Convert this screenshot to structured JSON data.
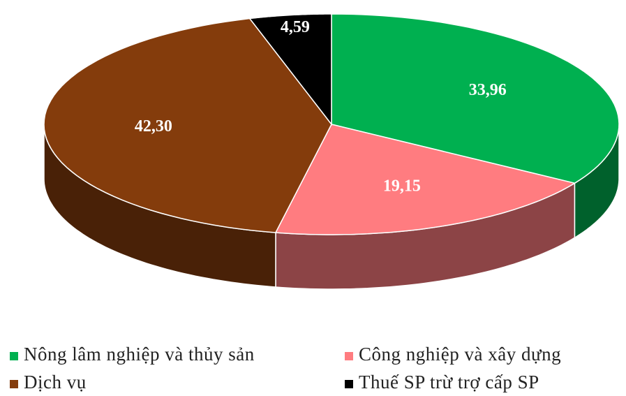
{
  "chart_data": {
    "type": "pie",
    "categories": [
      "Nông lâm nghiệp và thủy sản",
      "Công nghiệp và xây dựng",
      "Dịch vụ",
      "Thuế SP trừ trợ cấp SP"
    ],
    "values": [
      33.96,
      19.15,
      42.3,
      4.59
    ],
    "value_labels": [
      "33,96",
      "19,15",
      "42,30",
      "4,59"
    ],
    "colors": [
      "#00b050",
      "#ff7c80",
      "#843c0c",
      "#000000"
    ],
    "legend": "bottom"
  }
}
